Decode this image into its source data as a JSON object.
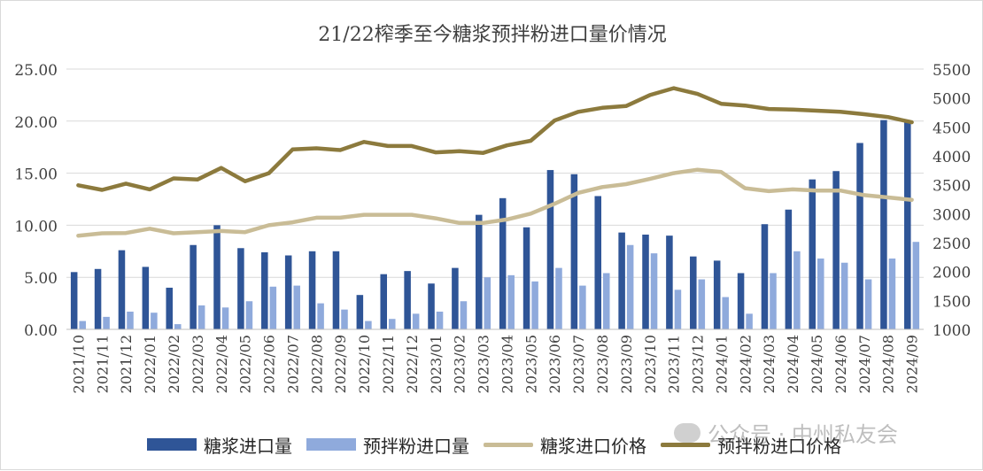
{
  "chart_data": {
    "type": "bar+line",
    "title": "21/22榨季至今糖浆预拌粉进口量价情况",
    "categories": [
      "2021/10",
      "2021/11",
      "2021/12",
      "2022/01",
      "2022/02",
      "2022/03",
      "2022/04",
      "2022/05",
      "2022/06",
      "2022/07",
      "2022/08",
      "2022/09",
      "2022/10",
      "2022/11",
      "2022/12",
      "2023/01",
      "2023/02",
      "2023/03",
      "2023/04",
      "2023/05",
      "2023/06",
      "2023/07",
      "2023/08",
      "2023/09",
      "2023/10",
      "2023/11",
      "2023/12",
      "2024/01",
      "2024/02",
      "2024/03",
      "2024/04",
      "2024/05",
      "2024/06",
      "2024/07",
      "2024/08",
      "2024/09"
    ],
    "left_axis": {
      "ylim": [
        0,
        25
      ],
      "ticks": [
        "0.00",
        "5.00",
        "10.00",
        "15.00",
        "20.00",
        "25.00"
      ]
    },
    "right_axis": {
      "ylim": [
        1000,
        5500
      ],
      "ticks": [
        "1000",
        "1500",
        "2000",
        "2500",
        "3000",
        "3500",
        "4000",
        "4500",
        "5000",
        "5500"
      ]
    },
    "series": [
      {
        "name": "糖浆进口量",
        "type": "bar",
        "axis": "left",
        "color": "#2f5597",
        "values": [
          5.5,
          5.8,
          7.6,
          6.0,
          4.0,
          8.1,
          10.0,
          7.8,
          7.4,
          7.1,
          7.5,
          7.5,
          3.3,
          5.3,
          5.6,
          4.4,
          5.9,
          11.0,
          12.6,
          9.8,
          15.3,
          14.9,
          12.8,
          9.3,
          9.1,
          9.0,
          7.0,
          6.6,
          5.4,
          10.1,
          11.5,
          14.4,
          15.2,
          17.9,
          20.1,
          19.9
        ]
      },
      {
        "name": "预拌粉进口量",
        "type": "bar",
        "axis": "left",
        "color": "#8faadc",
        "values": [
          0.8,
          1.2,
          1.7,
          1.6,
          0.5,
          2.3,
          2.1,
          2.7,
          4.1,
          4.2,
          2.5,
          1.9,
          0.8,
          1.0,
          1.5,
          1.7,
          2.7,
          5.0,
          5.2,
          4.6,
          5.9,
          4.2,
          5.4,
          8.1,
          7.3,
          3.8,
          4.8,
          3.1,
          1.5,
          5.4,
          7.5,
          6.8,
          6.4,
          4.8,
          6.8,
          8.4
        ]
      },
      {
        "name": "糖浆进口价格",
        "type": "line",
        "axis": "right",
        "color": "#c9bc96",
        "values": [
          2620,
          2660,
          2665,
          2740,
          2660,
          2680,
          2700,
          2680,
          2800,
          2850,
          2930,
          2930,
          2980,
          2980,
          2980,
          2920,
          2840,
          2840,
          2900,
          3000,
          3170,
          3360,
          3460,
          3510,
          3600,
          3700,
          3760,
          3720,
          3440,
          3390,
          3420,
          3400,
          3400,
          3320,
          3280,
          3240
        ]
      },
      {
        "name": "预拌粉进口价格",
        "type": "line",
        "axis": "right",
        "color": "#8c7a3d",
        "values": [
          3490,
          3410,
          3520,
          3420,
          3610,
          3590,
          3790,
          3560,
          3700,
          4110,
          4130,
          4100,
          4240,
          4170,
          4170,
          4060,
          4080,
          4050,
          4180,
          4260,
          4610,
          4760,
          4830,
          4860,
          5050,
          5170,
          5070,
          4900,
          4870,
          4810,
          4800,
          4780,
          4760,
          4720,
          4670,
          4580
        ]
      }
    ]
  },
  "watermark": "公众号 · 中州私友会"
}
